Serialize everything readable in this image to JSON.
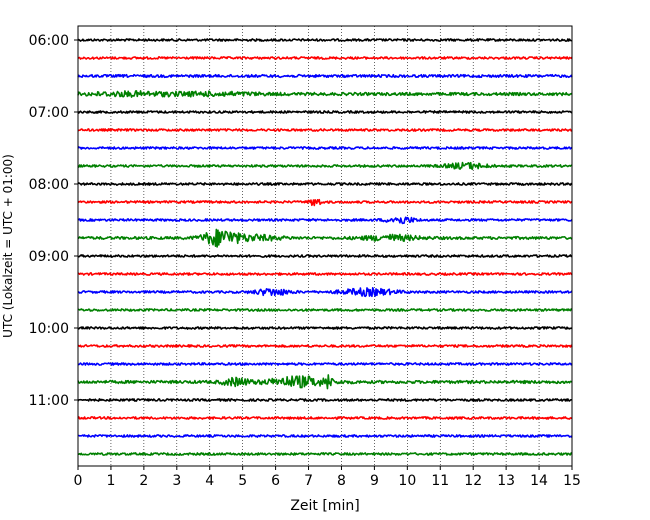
{
  "chart_data": {
    "type": "line",
    "title": "",
    "xlabel": "Zeit  [min]",
    "ylabel": "UTC (Lokalzeit = UTC + 01:00)",
    "xlim": [
      0,
      15
    ],
    "x_ticks": [
      0,
      1,
      2,
      3,
      4,
      5,
      6,
      7,
      8,
      9,
      10,
      11,
      12,
      13,
      14,
      15
    ],
    "y_tick_labels": [
      "06:00",
      "07:00",
      "08:00",
      "09:00",
      "10:00",
      "11:00"
    ],
    "grid": "vertical-dotted",
    "trace_interval_minutes": 15,
    "color_cycle": [
      "#000000",
      "#ff0000",
      "#0000ff",
      "#008000"
    ],
    "traces": [
      {
        "start": "06:00",
        "color": "#000000",
        "amplitude": 1,
        "events": []
      },
      {
        "start": "06:15",
        "color": "#ff0000",
        "amplitude": 1,
        "events": []
      },
      {
        "start": "06:30",
        "color": "#0000ff",
        "amplitude": 1.2,
        "events": []
      },
      {
        "start": "06:45",
        "color": "#008000",
        "amplitude": 1.3,
        "events": [
          {
            "t": 1.5,
            "w": 1.2,
            "a": 1.2
          },
          {
            "t": 4.0,
            "w": 1.5,
            "a": 1.0
          }
        ]
      },
      {
        "start": "07:00",
        "color": "#000000",
        "amplitude": 1,
        "events": []
      },
      {
        "start": "07:15",
        "color": "#ff0000",
        "amplitude": 1,
        "events": []
      },
      {
        "start": "07:30",
        "color": "#0000ff",
        "amplitude": 1,
        "events": []
      },
      {
        "start": "07:45",
        "color": "#008000",
        "amplitude": 1,
        "events": [
          {
            "t": 11.8,
            "w": 0.6,
            "a": 2.5
          }
        ]
      },
      {
        "start": "08:00",
        "color": "#000000",
        "amplitude": 1,
        "events": []
      },
      {
        "start": "08:15",
        "color": "#ff0000",
        "amplitude": 1,
        "events": [
          {
            "t": 7.2,
            "w": 0.15,
            "a": 4
          }
        ]
      },
      {
        "start": "08:30",
        "color": "#0000ff",
        "amplitude": 1,
        "events": [
          {
            "t": 9.8,
            "w": 0.4,
            "a": 3
          }
        ]
      },
      {
        "start": "08:45",
        "color": "#008000",
        "amplitude": 1.2,
        "events": [
          {
            "t": 4.3,
            "w": 0.5,
            "a": 6
          },
          {
            "t": 5.3,
            "w": 0.8,
            "a": 2
          },
          {
            "t": 9.5,
            "w": 0.8,
            "a": 2
          }
        ]
      },
      {
        "start": "09:00",
        "color": "#000000",
        "amplitude": 1,
        "events": []
      },
      {
        "start": "09:15",
        "color": "#ff0000",
        "amplitude": 1,
        "events": []
      },
      {
        "start": "09:30",
        "color": "#0000ff",
        "amplitude": 1,
        "events": [
          {
            "t": 5.9,
            "w": 0.5,
            "a": 3
          },
          {
            "t": 8.8,
            "w": 0.8,
            "a": 3
          }
        ]
      },
      {
        "start": "09:45",
        "color": "#008000",
        "amplitude": 1,
        "events": []
      },
      {
        "start": "10:00",
        "color": "#000000",
        "amplitude": 1,
        "events": []
      },
      {
        "start": "10:15",
        "color": "#ff0000",
        "amplitude": 1,
        "events": []
      },
      {
        "start": "10:30",
        "color": "#0000ff",
        "amplitude": 1,
        "events": []
      },
      {
        "start": "10:45",
        "color": "#008000",
        "amplitude": 1.3,
        "events": [
          {
            "t": 6.7,
            "w": 0.9,
            "a": 3.5
          },
          {
            "t": 4.8,
            "w": 0.4,
            "a": 2.5
          },
          {
            "t": 7.6,
            "w": 0.08,
            "a": 5
          }
        ]
      },
      {
        "start": "11:00",
        "color": "#000000",
        "amplitude": 1,
        "events": []
      },
      {
        "start": "11:15",
        "color": "#ff0000",
        "amplitude": 1,
        "events": []
      },
      {
        "start": "11:30",
        "color": "#0000ff",
        "amplitude": 1,
        "events": []
      },
      {
        "start": "11:45",
        "color": "#008000",
        "amplitude": 1,
        "events": []
      }
    ]
  }
}
